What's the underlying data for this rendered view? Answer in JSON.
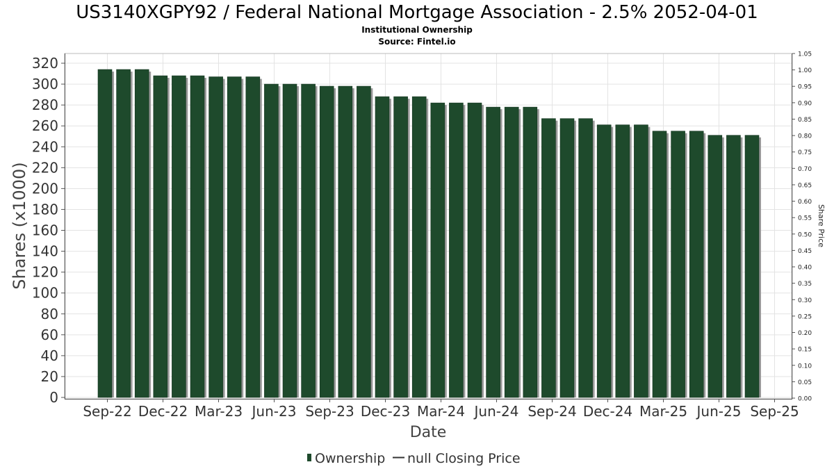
{
  "chart_data": {
    "type": "bar",
    "title": "US3140XGPY92 / Federal National Mortgage Association - 2.5% 2052-04-01",
    "subtitle": "Institutional Ownership",
    "source": "Source: Fintel.io",
    "xlabel": "Date",
    "ylabel": "Shares (x1000)",
    "y2label": "Share Price",
    "ylim": [
      0,
      320
    ],
    "y_ticks": [
      0,
      20,
      40,
      60,
      80,
      100,
      120,
      140,
      160,
      180,
      200,
      220,
      240,
      260,
      280,
      300,
      320
    ],
    "y2lim": [
      0.0,
      1.05
    ],
    "y2_ticks": [
      "0.00",
      "0.05",
      "0.10",
      "0.15",
      "0.20",
      "0.25",
      "0.30",
      "0.35",
      "0.40",
      "0.45",
      "0.50",
      "0.55",
      "0.60",
      "0.65",
      "0.70",
      "0.75",
      "0.80",
      "0.85",
      "0.90",
      "0.95",
      "1.00",
      "1.05"
    ],
    "x_ticks": [
      "Sep-22",
      "Dec-22",
      "Mar-23",
      "Jun-23",
      "Sep-23",
      "Dec-23",
      "Mar-24",
      "Jun-24",
      "Sep-24",
      "Dec-24",
      "Mar-25",
      "Jun-25",
      "Sep-25"
    ],
    "grid": true,
    "legend_position": "bottom-center",
    "series": [
      {
        "name": "Ownership",
        "color": "#1e4a2c",
        "values": [
          314,
          314,
          314,
          308,
          308,
          308,
          307,
          307,
          307,
          300,
          300,
          300,
          298,
          298,
          298,
          288,
          288,
          288,
          282,
          282,
          282,
          278,
          278,
          278,
          267,
          267,
          267,
          261,
          261,
          261,
          255,
          255,
          255,
          251,
          251,
          251
        ]
      },
      {
        "name": "null Closing Price",
        "color": "#333333",
        "values": []
      }
    ]
  }
}
